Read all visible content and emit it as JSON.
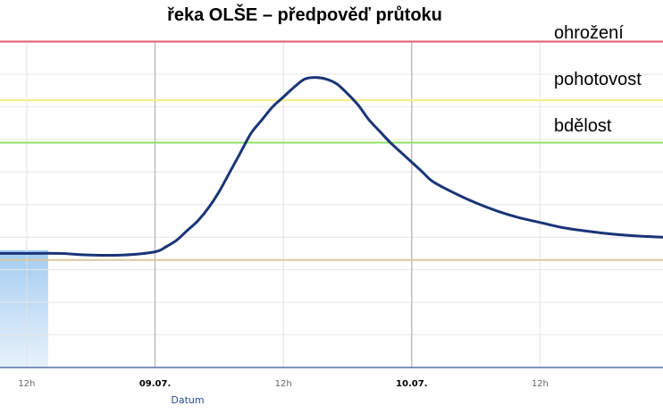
{
  "chart_data": {
    "type": "line",
    "title": "řeka OLŠE – předpověď průtoku",
    "xlabel": "Datum",
    "ylabel": "",
    "x_ticks": [
      {
        "label": "12h",
        "hour": 12,
        "major": false
      },
      {
        "label": "09.07.",
        "hour": 24,
        "major": true
      },
      {
        "label": "12h",
        "hour": 36,
        "major": false
      },
      {
        "label": "10.07.",
        "hour": 48,
        "major": true
      },
      {
        "label": "12h",
        "hour": 60,
        "major": false
      }
    ],
    "xlim_hours": [
      9.5,
      71.5
    ],
    "ylim": [
      0,
      100
    ],
    "grid": true,
    "thresholds": [
      {
        "label": "ohrožení",
        "value": 100,
        "color": "#e05a6a"
      },
      {
        "label": "pohotovost",
        "value": 82,
        "color": "#f2ec8a"
      },
      {
        "label": "bdělost",
        "value": 69,
        "color": "#8fe06a"
      },
      {
        "label": "",
        "value": 33,
        "color": "#d8c9a0"
      }
    ],
    "history_band": {
      "from_hour": 9.5,
      "to_hour": 14,
      "top_value": 36,
      "color": "#9fc9ef"
    },
    "series": [
      {
        "color": "#1a3577",
        "hours": [
          9.5,
          12,
          15,
          18,
          21,
          24,
          25,
          26,
          27,
          28,
          29,
          30,
          31,
          32,
          33,
          34,
          35,
          36,
          37,
          38,
          39,
          40,
          41,
          42,
          43,
          44,
          45,
          46,
          47,
          48,
          49,
          50,
          52,
          54,
          56,
          58,
          60,
          62,
          64,
          66,
          68,
          70,
          71.5
        ],
        "values": [
          35,
          35,
          35,
          34.5,
          34.5,
          35.5,
          37,
          39,
          42,
          45,
          49,
          54,
          60,
          66,
          72,
          76,
          80,
          83,
          86,
          88.5,
          89,
          88.5,
          87,
          84,
          80.5,
          76,
          72.5,
          69,
          66,
          63,
          60,
          57,
          53.5,
          50.5,
          48,
          46,
          44.5,
          43,
          42,
          41.2,
          40.6,
          40.2,
          40
        ]
      }
    ]
  }
}
